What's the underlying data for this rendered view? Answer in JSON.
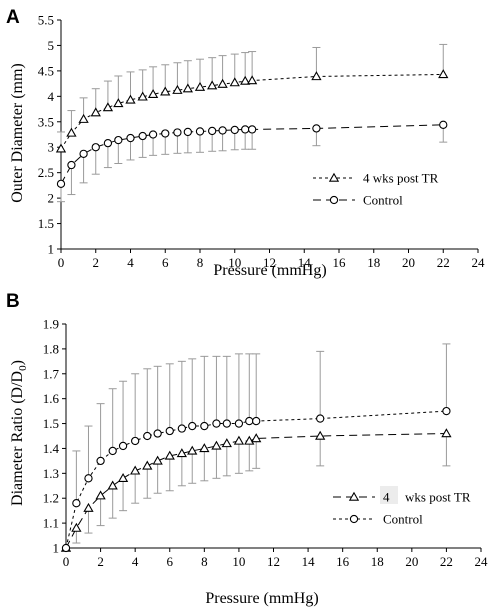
{
  "chart_data": [
    {
      "type": "line",
      "panel_label": "A",
      "xlabel": "Pressure (mmHg)",
      "ylabel": "Outer Diameter (mm)",
      "xlim": [
        0,
        24
      ],
      "ylim": [
        1,
        5.5
      ],
      "xticks": [
        "0",
        "2",
        "4",
        "6",
        "8",
        "10",
        "12",
        "14",
        "16",
        "18",
        "20",
        "22",
        "24"
      ],
      "yticks": [
        "1",
        "1.5",
        "2",
        "2.5",
        "3",
        "3.5",
        "4",
        "4.5",
        "5",
        "5.5"
      ],
      "x": [
        0,
        0.6,
        1.3,
        2,
        2.7,
        3.3,
        4,
        4.7,
        5.3,
        6,
        6.7,
        7.3,
        8,
        8.7,
        9.3,
        10,
        10.6,
        11,
        14.7,
        22
      ],
      "legend_position": "center-right",
      "series": [
        {
          "name": "4 wks post TR",
          "marker": "triangle",
          "line": "short-dash",
          "values": [
            2.97,
            3.28,
            3.55,
            3.68,
            3.78,
            3.86,
            3.93,
            3.99,
            4.04,
            4.09,
            4.12,
            4.15,
            4.18,
            4.21,
            4.24,
            4.27,
            4.3,
            4.31,
            4.39,
            4.43
          ],
          "error_upper": [
            3.3,
            3.72,
            3.97,
            4.15,
            4.3,
            4.4,
            4.48,
            4.52,
            4.58,
            4.62,
            4.66,
            4.7,
            4.73,
            4.76,
            4.8,
            4.83,
            4.86,
            4.88,
            4.96,
            5.02
          ]
        },
        {
          "name": "Control",
          "marker": "circle",
          "line": "long-dash",
          "values": [
            2.28,
            2.65,
            2.87,
            3.0,
            3.08,
            3.14,
            3.18,
            3.22,
            3.25,
            3.27,
            3.29,
            3.3,
            3.31,
            3.32,
            3.33,
            3.34,
            3.35,
            3.35,
            3.37,
            3.44
          ],
          "error_lower": [
            1.93,
            2.07,
            2.3,
            2.47,
            2.6,
            2.68,
            2.75,
            2.8,
            2.84,
            2.86,
            2.88,
            2.89,
            2.9,
            2.92,
            2.93,
            2.95,
            2.96,
            2.96,
            3.03,
            3.1
          ]
        }
      ]
    },
    {
      "type": "line",
      "panel_label": "B",
      "xlabel": "Pressure (mmHg)",
      "ylabel_main": "Diameter Ratio (D/D",
      "ylabel_sub": "0",
      "ylabel_end": ")",
      "xlim": [
        0,
        24
      ],
      "ylim": [
        1,
        1.9
      ],
      "xticks": [
        "0",
        "2",
        "4",
        "6",
        "8",
        "10",
        "12",
        "14",
        "16",
        "18",
        "20",
        "22",
        "24"
      ],
      "yticks": [
        "1",
        "1.1",
        "1.2",
        "1.3",
        "1.4",
        "1.5",
        "1.6",
        "1.7",
        "1.8",
        "1.9"
      ],
      "x": [
        0,
        0.6,
        1.3,
        2,
        2.7,
        3.3,
        4,
        4.7,
        5.3,
        6,
        6.7,
        7.3,
        8,
        8.7,
        9.3,
        10,
        10.6,
        11,
        14.7,
        22
      ],
      "legend_position": "lower-right",
      "series": [
        {
          "name": "wks post TR",
          "name_prefix": "4",
          "marker": "triangle",
          "line": "long-dash",
          "values": [
            1.0,
            1.08,
            1.16,
            1.21,
            1.25,
            1.28,
            1.31,
            1.33,
            1.35,
            1.37,
            1.38,
            1.39,
            1.4,
            1.41,
            1.42,
            1.43,
            1.43,
            1.44,
            1.45,
            1.46
          ],
          "error_lower": [
            1.0,
            1.02,
            1.06,
            1.09,
            1.12,
            1.15,
            1.18,
            1.2,
            1.22,
            1.23,
            1.25,
            1.26,
            1.27,
            1.28,
            1.29,
            1.3,
            1.31,
            1.32,
            1.33,
            1.33
          ]
        },
        {
          "name": "Control",
          "marker": "circle",
          "line": "short-dash",
          "values": [
            1.0,
            1.18,
            1.28,
            1.35,
            1.39,
            1.41,
            1.43,
            1.45,
            1.46,
            1.47,
            1.48,
            1.49,
            1.49,
            1.5,
            1.5,
            1.5,
            1.51,
            1.51,
            1.52,
            1.55
          ],
          "error_upper": [
            1.0,
            1.39,
            1.49,
            1.58,
            1.64,
            1.67,
            1.7,
            1.72,
            1.73,
            1.74,
            1.75,
            1.76,
            1.77,
            1.77,
            1.77,
            1.78,
            1.78,
            1.78,
            1.79,
            1.82
          ]
        }
      ]
    }
  ]
}
